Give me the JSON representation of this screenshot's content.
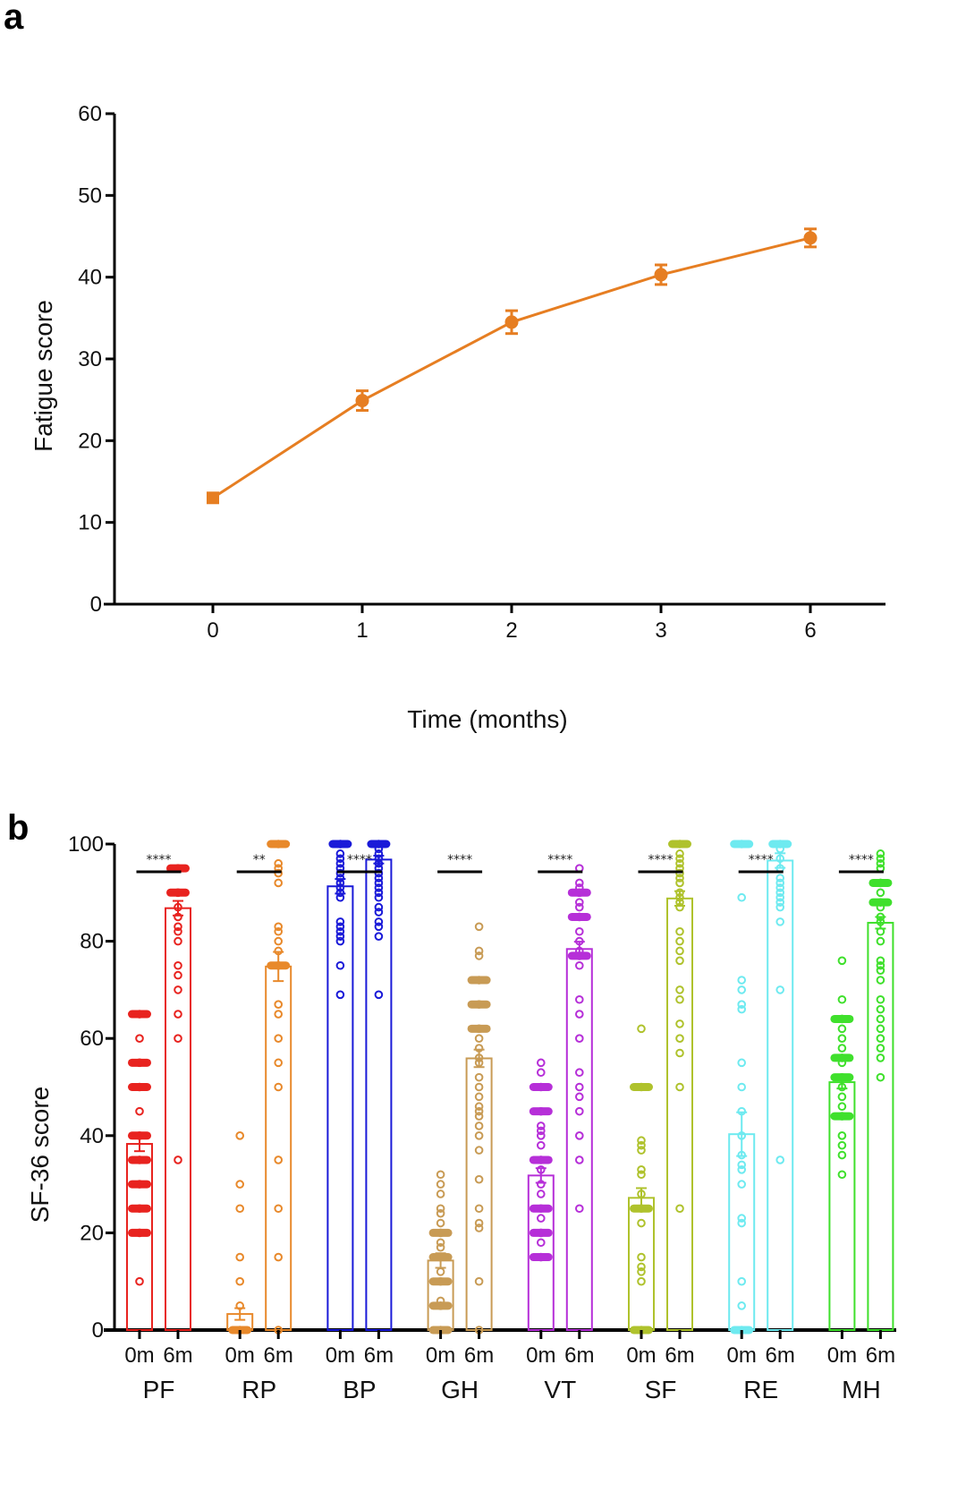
{
  "chart_data": [
    {
      "panel": "a",
      "type": "line",
      "title": "",
      "xlabel": "Time (months)",
      "ylabel": "Fatigue score",
      "categories": [
        "0",
        "1",
        "2",
        "3",
        "6"
      ],
      "ylim": [
        0,
        60
      ],
      "yticks": [
        0,
        10,
        20,
        30,
        40,
        50,
        60
      ],
      "grid": false,
      "series": [
        {
          "name": "Fatigue score",
          "color": "#E67E22",
          "values": [
            13.0,
            24.9,
            34.5,
            40.3,
            44.8
          ],
          "error": [
            0.5,
            1.2,
            1.4,
            1.2,
            1.1
          ],
          "markers": [
            "square",
            "circle",
            "circle",
            "circle",
            "circle"
          ]
        }
      ]
    },
    {
      "panel": "b",
      "type": "bar",
      "title": "",
      "xlabel": "",
      "ylabel": "SF-36 score",
      "ylim": [
        0,
        100
      ],
      "yticks": [
        0,
        20,
        40,
        60,
        80,
        100
      ],
      "grid": false,
      "sub_labels": [
        "0m",
        "6m"
      ],
      "groups": [
        {
          "name": "PF",
          "color": "#E8231F",
          "significance": "****",
          "mean_0m": 38.3,
          "sem_0m": 1.5,
          "mean_6m": 86.8,
          "sem_6m": 1.5,
          "points_0m": [
            65,
            60,
            55,
            50,
            45,
            40,
            35,
            30,
            25,
            20,
            10
          ],
          "points_6m": [
            95,
            90,
            87,
            85,
            83,
            82,
            80,
            75,
            73,
            70,
            65,
            60,
            35
          ]
        },
        {
          "name": "RP",
          "color": "#E8892B",
          "significance": "**",
          "mean_0m": 3.3,
          "sem_0m": 1.2,
          "mean_6m": 74.8,
          "sem_6m": 3.0,
          "points_0m": [
            40,
            30,
            25,
            15,
            10,
            5,
            0
          ],
          "points_6m": [
            100,
            96,
            95,
            94,
            92,
            83,
            82,
            80,
            78,
            75,
            67,
            65,
            60,
            55,
            50,
            35,
            25,
            15,
            0
          ]
        },
        {
          "name": "BP",
          "color": "#1A1AD8",
          "significance": "****",
          "mean_0m": 91.3,
          "sem_0m": 1.5,
          "mean_6m": 96.8,
          "sem_6m": 0.8,
          "points_0m": [
            100,
            98,
            97,
            96,
            95,
            94,
            93,
            92,
            91,
            90,
            89,
            84,
            83,
            82,
            81,
            80,
            75,
            69
          ],
          "points_6m": [
            100,
            99,
            98,
            97,
            96,
            95,
            94,
            93,
            92,
            91,
            90,
            89,
            87,
            86,
            84,
            83,
            81,
            69
          ]
        },
        {
          "name": "GH",
          "color": "#C89B55",
          "significance": "****",
          "mean_0m": 14.3,
          "sem_0m": 1.5,
          "mean_6m": 55.9,
          "sem_6m": 1.8,
          "points_0m": [
            32,
            30,
            28,
            25,
            24,
            22,
            20,
            18,
            17,
            15,
            12,
            10,
            6,
            5,
            0
          ],
          "points_6m": [
            83,
            78,
            77,
            72,
            67,
            62,
            60,
            58,
            56,
            55,
            52,
            50,
            48,
            46,
            45,
            44,
            42,
            40,
            37,
            31,
            25,
            22,
            21,
            10,
            0
          ]
        },
        {
          "name": "VT",
          "color": "#B62FD8",
          "significance": "****",
          "mean_0m": 31.8,
          "sem_0m": 1.5,
          "mean_6m": 78.4,
          "sem_6m": 1.5,
          "points_0m": [
            55,
            53,
            50,
            45,
            42,
            41,
            40,
            38,
            35,
            33,
            30,
            28,
            25,
            23,
            20,
            18,
            15
          ],
          "points_6m": [
            95,
            92,
            91,
            90,
            88,
            87,
            85,
            82,
            80,
            78,
            77,
            75,
            68,
            65,
            60,
            53,
            50,
            48,
            45,
            40,
            35,
            25
          ]
        },
        {
          "name": "SF",
          "color": "#AFC22C",
          "significance": "****",
          "mean_0m": 27.2,
          "sem_0m": 2.0,
          "mean_6m": 88.8,
          "sem_6m": 1.5,
          "points_0m": [
            62,
            50,
            39,
            38,
            37,
            33,
            32,
            28,
            25,
            22,
            15,
            13,
            12,
            10,
            0
          ],
          "points_6m": [
            100,
            98,
            97,
            96,
            95,
            94,
            93,
            92,
            90,
            89,
            88,
            87,
            82,
            80,
            78,
            76,
            70,
            68,
            63,
            60,
            57,
            50,
            25
          ]
        },
        {
          "name": "RE",
          "color": "#6EEAF0",
          "significance": "****",
          "mean_0m": 40.3,
          "sem_0m": 4.5,
          "mean_6m": 96.6,
          "sem_6m": 1.5,
          "points_0m": [
            100,
            89,
            72,
            70,
            67,
            66,
            55,
            50,
            45,
            40,
            36,
            34,
            33,
            30,
            23,
            22,
            10,
            5,
            0
          ],
          "points_6m": [
            100,
            99,
            97,
            95,
            93,
            92,
            91,
            90,
            89,
            88,
            87,
            84,
            70,
            35
          ]
        },
        {
          "name": "MH",
          "color": "#3FE02C",
          "significance": "****",
          "mean_0m": 51.0,
          "sem_0m": 1.3,
          "mean_6m": 83.8,
          "sem_6m": 1.2,
          "points_0m": [
            76,
            68,
            64,
            62,
            60,
            58,
            56,
            55,
            52,
            50,
            48,
            46,
            44,
            40,
            38,
            36,
            32
          ],
          "points_6m": [
            98,
            97,
            96,
            95,
            92,
            90,
            88,
            87,
            85,
            84,
            82,
            80,
            76,
            75,
            74,
            72,
            68,
            66,
            64,
            62,
            60,
            58,
            56,
            52
          ]
        }
      ]
    }
  ],
  "labels": {
    "panel_a": "a",
    "panel_b": "b"
  }
}
